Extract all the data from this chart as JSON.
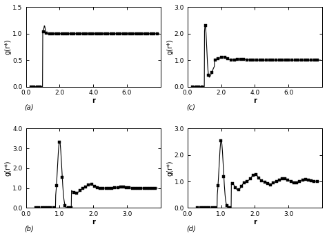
{
  "subplots": [
    {
      "label": "(a)",
      "xlabel": "r",
      "ylabel": "g(r*)",
      "xlim": [
        0.0,
        8.0
      ],
      "ylim": [
        0.0,
        1.5
      ],
      "xticks": [
        0.0,
        2.0,
        4.0,
        6.0
      ],
      "yticks": [
        0.0,
        0.5,
        1.0,
        1.5
      ],
      "type": "hs_low"
    },
    {
      "label": "(c)",
      "xlabel": "r",
      "ylabel": "g(r*)",
      "xlim": [
        0.0,
        8.0
      ],
      "ylim": [
        0.0,
        3.0
      ],
      "xticks": [
        0.0,
        2.0,
        4.0,
        6.0
      ],
      "yticks": [
        0.0,
        1.0,
        2.0,
        3.0
      ],
      "type": "hs_med"
    },
    {
      "label": "(b)",
      "xlabel": "r",
      "ylabel": "g(r*)",
      "xlim": [
        0.0,
        4.0
      ],
      "ylim": [
        0.0,
        4.0
      ],
      "xticks": [
        0.0,
        1.0,
        2.0,
        3.0
      ],
      "yticks": [
        0.0,
        1.0,
        2.0,
        3.0,
        4.0
      ],
      "type": "lj_low"
    },
    {
      "label": "(d)",
      "xlabel": "r",
      "ylabel": "g(r*)",
      "xlim": [
        0.0,
        4.0
      ],
      "ylim": [
        0.0,
        3.0
      ],
      "xticks": [
        0.0,
        1.0,
        2.0,
        3.0
      ],
      "yticks": [
        0.0,
        1.0,
        2.0,
        3.0
      ],
      "type": "lj_med"
    }
  ],
  "line_color": "#000000",
  "marker": "s",
  "markersize": 2.2,
  "linewidth": 0.8,
  "background_color": "#ffffff"
}
